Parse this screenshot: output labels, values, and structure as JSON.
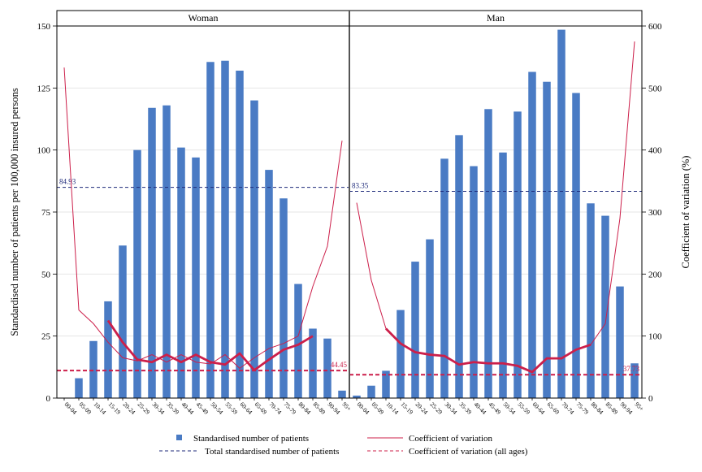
{
  "chart_data": {
    "type": "bar",
    "colors": {
      "bar": "#4a7bc4",
      "cv_line": "#cc1f4a",
      "total_line": "#1e2a7a",
      "cv_all_line": "#cc1f4a"
    },
    "y_left": {
      "label": "Standardised number of patients per 100,000 insured persons",
      "lim": [
        0,
        150
      ],
      "ticks": [
        "0",
        "25",
        "50",
        "75",
        "100",
        "125",
        "150"
      ]
    },
    "y_right": {
      "label": "Coefficient of variation (%)",
      "lim": [
        0,
        600
      ],
      "ticks": [
        "0",
        "100",
        "200",
        "300",
        "400",
        "500",
        "600"
      ]
    },
    "categories": [
      "00-04",
      "05-09",
      "10-14",
      "15-19",
      "20-24",
      "25-29",
      "30-34",
      "35-39",
      "40-44",
      "45-49",
      "50-54",
      "55-59",
      "60-64",
      "65-69",
      "70-74",
      "75-79",
      "80-84",
      "85-89",
      "90-94",
      "95+"
    ],
    "panels": [
      {
        "title": "Woman",
        "values": [
          0,
          8,
          23,
          39,
          61.5,
          100,
          117,
          118,
          101,
          97,
          135.5,
          136,
          132,
          120,
          92,
          80.5,
          46,
          28,
          24,
          3
        ],
        "cv_thin": [
          533,
          142,
          120,
          90,
          65,
          60,
          70,
          58,
          70,
          58,
          55,
          70,
          48,
          65,
          80,
          88,
          100,
          180,
          245,
          415
        ],
        "cv_bold": [
          null,
          null,
          null,
          125,
          90,
          62,
          58,
          70,
          58,
          70,
          58,
          54,
          72,
          45,
          62,
          78,
          86,
          100,
          null,
          null
        ],
        "total_standardised": 84.93,
        "total_label": "84.93",
        "cv_all_ages": 44.45,
        "cv_all_label": "44.45"
      },
      {
        "title": "Man",
        "values": [
          1,
          5,
          11,
          35.5,
          55,
          64,
          96.5,
          106,
          93.5,
          116.5,
          99,
          115.5,
          131.5,
          127.5,
          148.5,
          123,
          78.5,
          73.5,
          45,
          14
        ],
        "cv_thin": [
          315,
          190,
          112,
          88,
          74,
          70,
          68,
          54,
          58,
          56,
          56,
          52,
          42,
          64,
          64,
          78,
          86,
          120,
          290,
          575
        ],
        "cv_bold": [
          null,
          null,
          112,
          88,
          74,
          70,
          68,
          54,
          58,
          56,
          56,
          52,
          42,
          64,
          64,
          78,
          86,
          null,
          null,
          null
        ],
        "total_standardised": 83.35,
        "total_label": "83.35",
        "cv_all_ages": 37.73,
        "cv_all_label": "37.73"
      }
    ],
    "legend": {
      "bar": "Standardised number of patients",
      "cv": "Coefficient of variation",
      "total": "Total standardised number of patients",
      "cv_all": "Coefficient of variation (all ages)"
    }
  }
}
